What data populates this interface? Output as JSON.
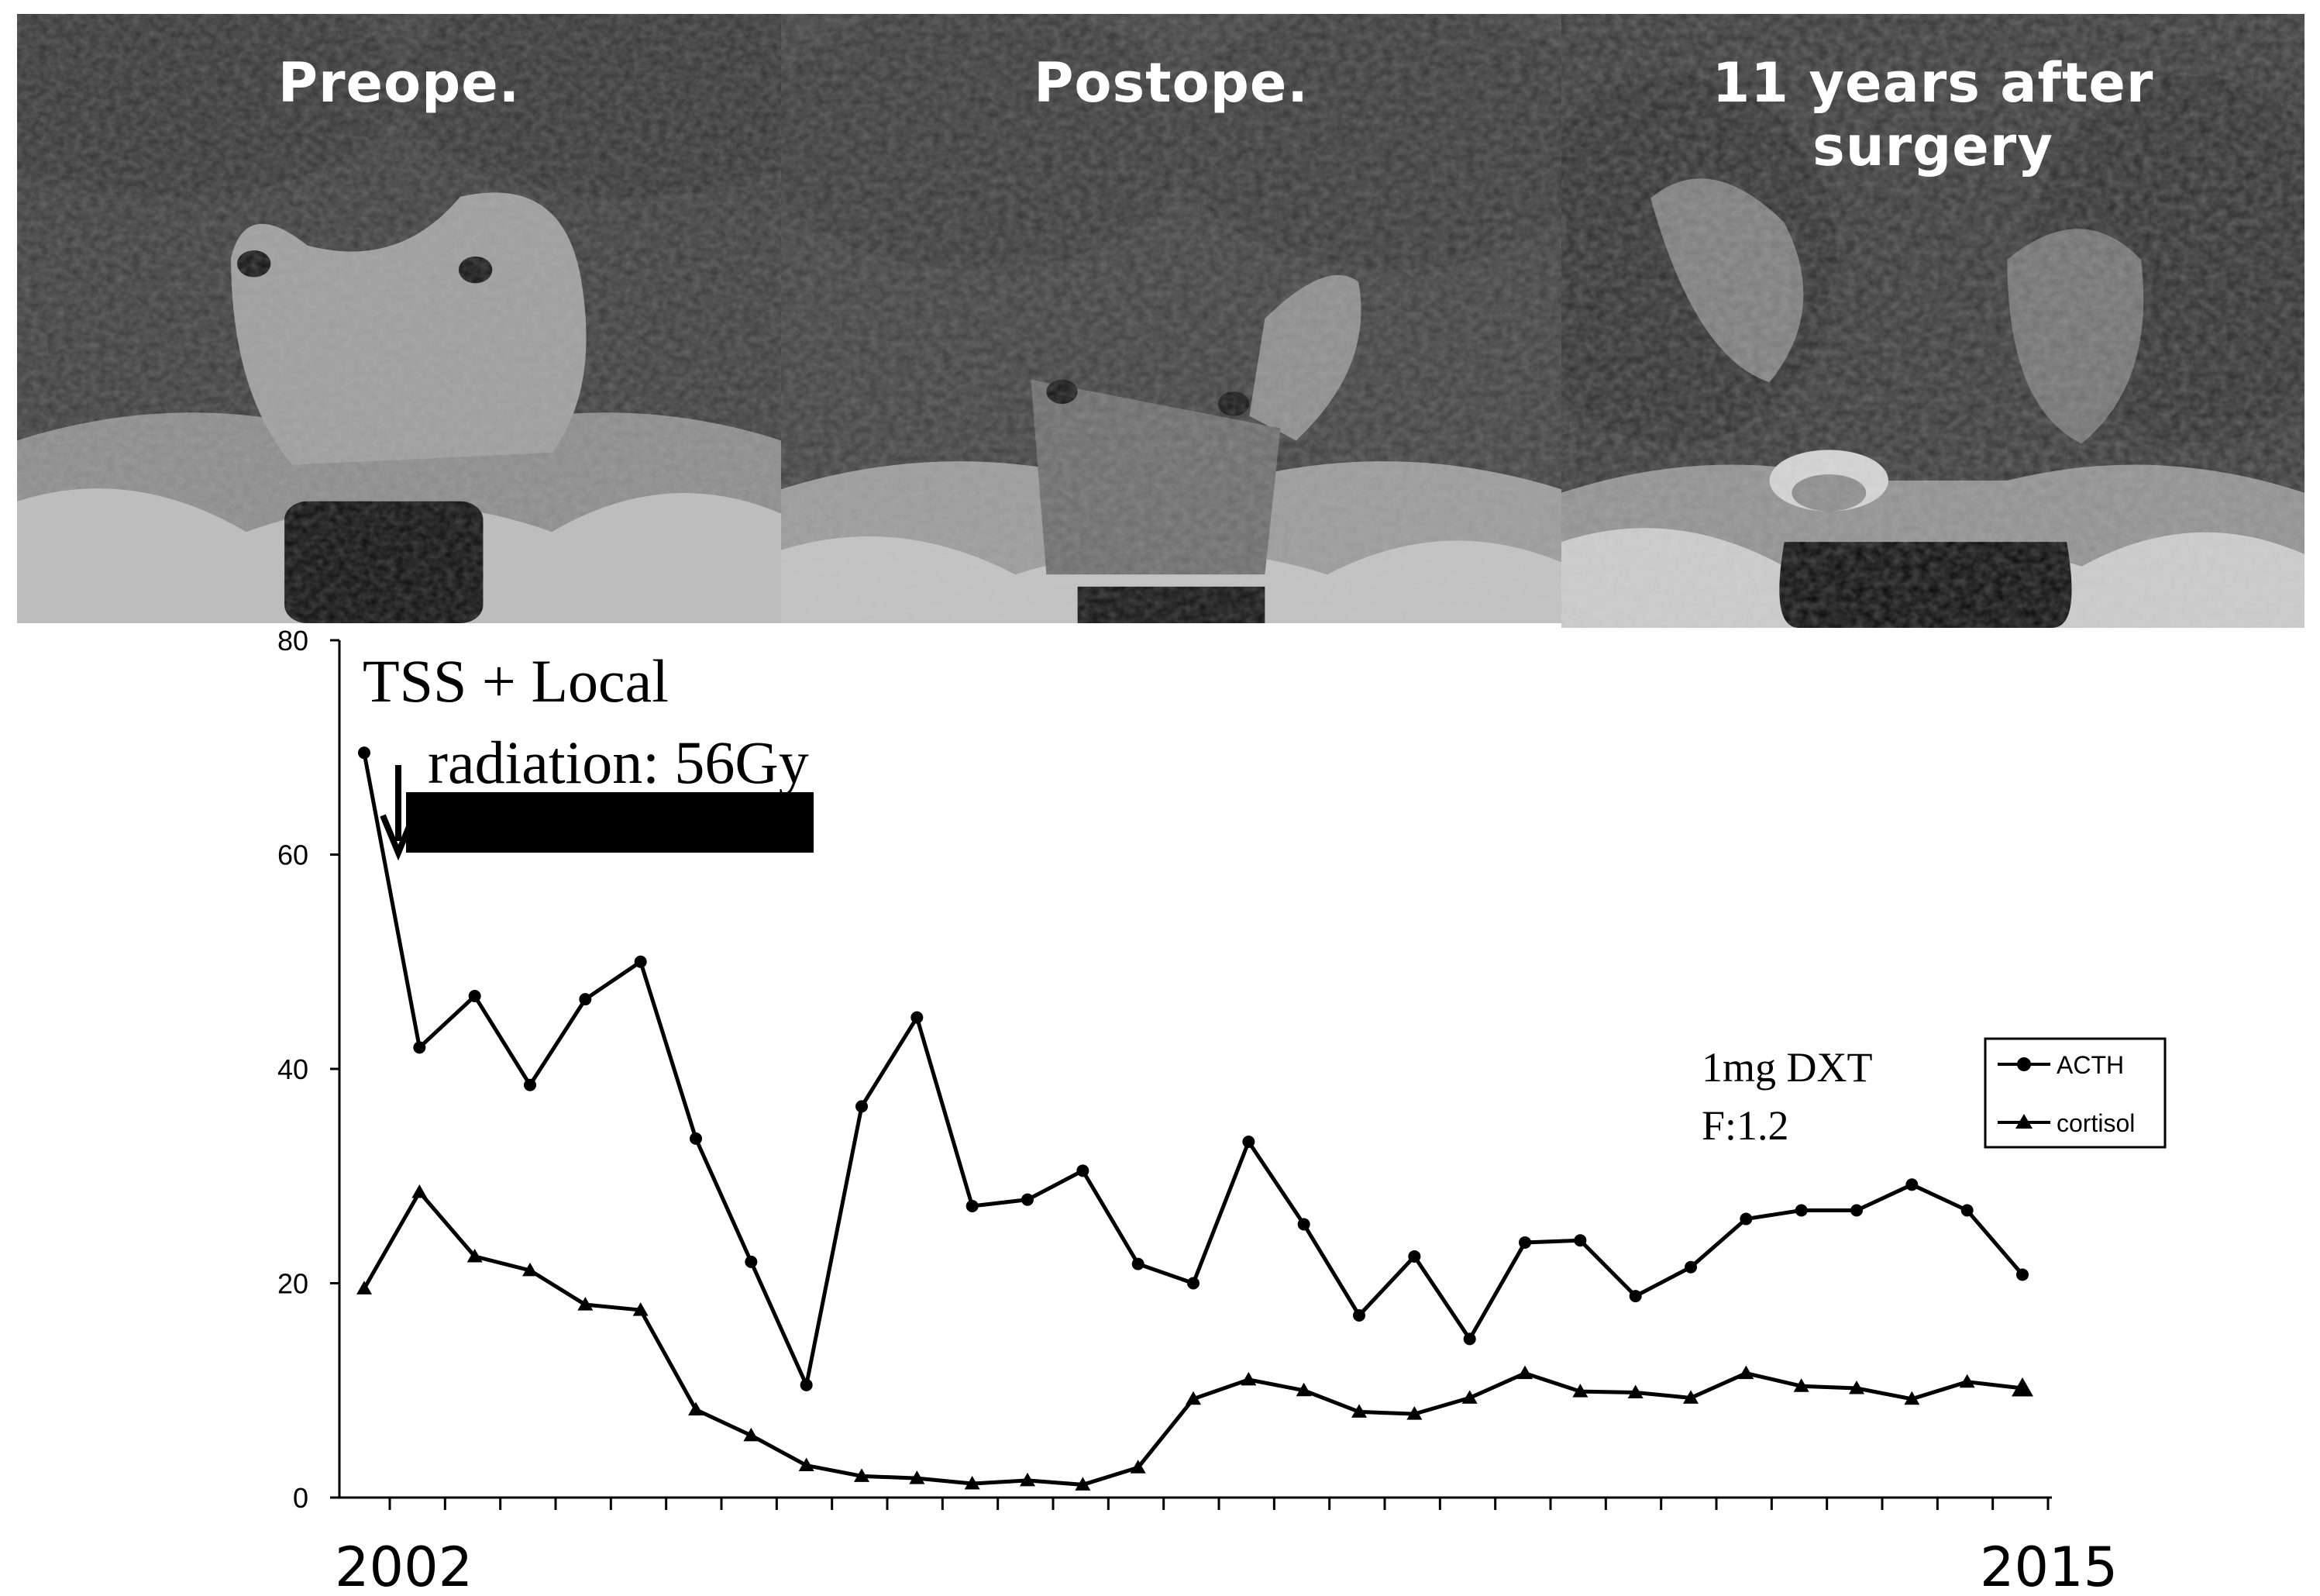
{
  "panels": [
    {
      "label": "Preope."
    },
    {
      "label": "Postope."
    },
    {
      "label": "11 years after surgery"
    }
  ],
  "annotations": {
    "treatment_line1": "TSS + Local",
    "treatment_line2": "radiation: 56Gy",
    "dxt_line1": "1mg DXT",
    "dxt_line2": "F:1.2"
  },
  "chart_data": {
    "type": "line",
    "ylim": [
      0,
      80
    ],
    "yticks": [
      0,
      20,
      40,
      60,
      80
    ],
    "x_start_label": "2002",
    "x_end_label": "2015",
    "legend_position": "right",
    "series": [
      {
        "name": "ACTH",
        "marker": "circle",
        "values": [
          69.5,
          42,
          46.8,
          38.5,
          46.5,
          50,
          33.5,
          22,
          10.5,
          36.5,
          44.8,
          27.2,
          27.8,
          30.5,
          21.8,
          20,
          33.2,
          25.5,
          17,
          22.5,
          14.8,
          23.8,
          24,
          18.8,
          21.5,
          26,
          26.8,
          26.8,
          29.2,
          26.8,
          20.8
        ]
      },
      {
        "name": "cortisol",
        "marker": "triangle",
        "values": [
          19.5,
          28.5,
          22.5,
          21.2,
          18,
          17.5,
          8.2,
          5.8,
          3,
          2,
          1.8,
          1.3,
          1.6,
          1.2,
          2.8,
          9.2,
          11,
          10,
          8,
          7.8,
          9.3,
          11.6,
          9.9,
          9.8,
          9.3,
          11.6,
          10.4,
          10.2,
          9.2,
          10.8,
          10.2
        ]
      }
    ]
  }
}
